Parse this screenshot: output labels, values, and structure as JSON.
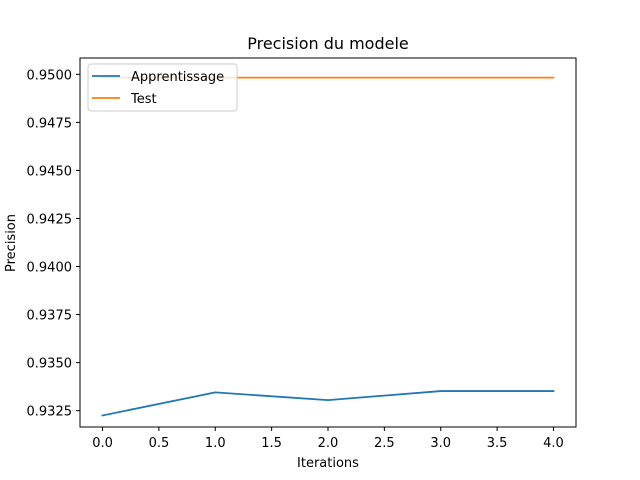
{
  "chart_data": {
    "type": "line",
    "title": "Precision du modele",
    "xlabel": "Iterations",
    "ylabel": "Precision",
    "x": [
      0,
      1,
      2,
      3,
      4
    ],
    "xlim": [
      -0.2,
      4.2
    ],
    "ylim": [
      0.93165,
      0.95085
    ],
    "xticks": [
      "0.0",
      "0.5",
      "1.0",
      "1.5",
      "2.0",
      "2.5",
      "3.0",
      "3.5",
      "4.0"
    ],
    "yticks": [
      "0.9325",
      "0.9350",
      "0.9375",
      "0.9400",
      "0.9425",
      "0.9450",
      "0.9475",
      "0.9500"
    ],
    "grid": false,
    "legend_position": "upper-left",
    "series": [
      {
        "name": "Apprentissage",
        "color": "#1f77b4",
        "values": [
          0.93225,
          0.93345,
          0.93305,
          0.93352,
          0.93352
        ]
      },
      {
        "name": "Test",
        "color": "#ff7f0e",
        "values": [
          0.94983,
          0.94983,
          0.94983,
          0.94983,
          0.94983
        ]
      }
    ]
  }
}
